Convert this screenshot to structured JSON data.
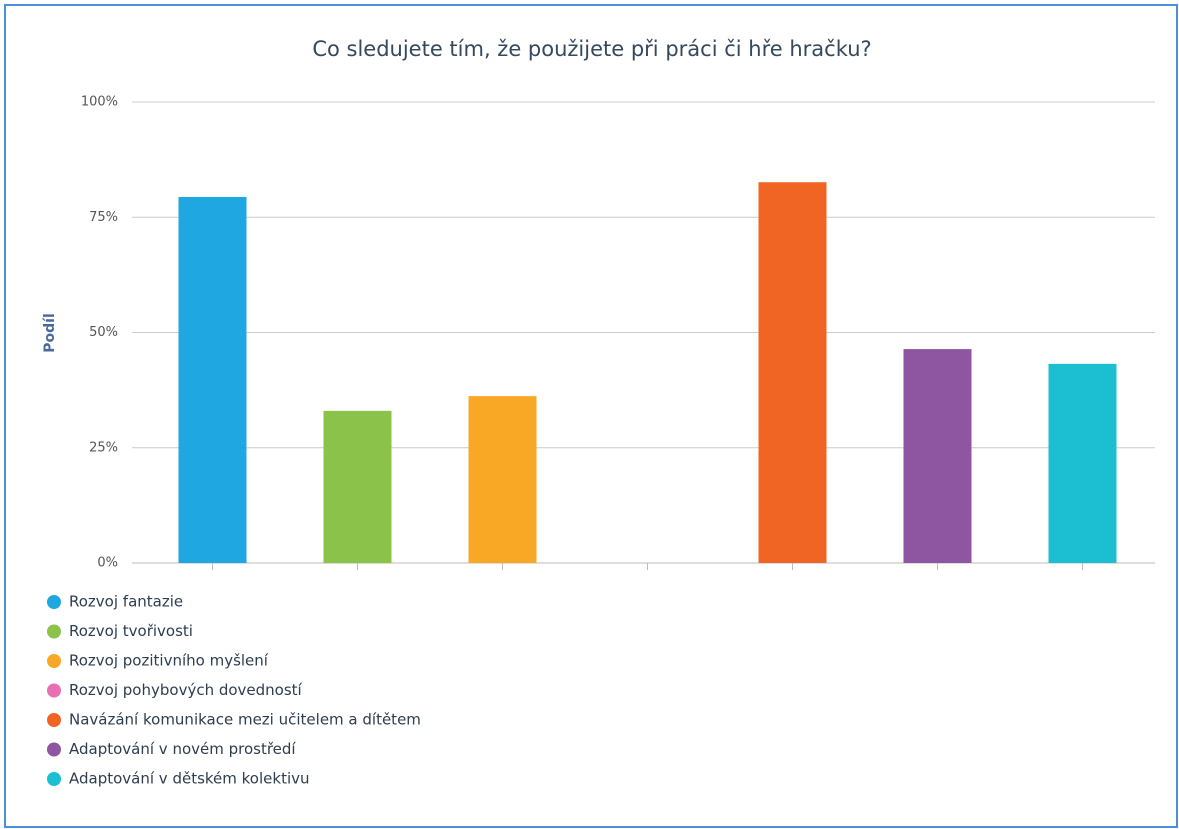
{
  "chart_data": {
    "type": "bar",
    "title": "Co sledujete tím, že použijete při práci či hře hračku?",
    "y_label": "Podíl",
    "series": [
      {
        "name": "Rozvoj fantazie",
        "color": "#1ea7e1",
        "values": [
          79.4
        ]
      },
      {
        "name": "Rozvoj tvořivosti",
        "color": "#8bc34a",
        "values": [
          33.0
        ]
      },
      {
        "name": "Rozvoj pozitivního myšlení",
        "color": "#f9a825",
        "values": [
          36.2
        ]
      },
      {
        "name": "Rozvoj pohybových dovedností",
        "color": "#e86fb3",
        "values": [
          0
        ]
      },
      {
        "name": "Navázání komunikace mezi učitelem a dítětem",
        "color": "#f06523",
        "values": [
          82.6
        ]
      },
      {
        "name": "Adaptování v novém prostředí",
        "color": "#8e55a0",
        "values": [
          46.4
        ]
      },
      {
        "name": "Adaptování v dětském kolektivu",
        "color": "#1bbfd1",
        "values": [
          43.2
        ]
      }
    ],
    "ylim": [
      0,
      100
    ],
    "yticks": [
      {
        "value": 0,
        "label": "0%"
      },
      {
        "value": 25,
        "label": "25%"
      },
      {
        "value": 50,
        "label": "50%"
      },
      {
        "value": 75,
        "label": "75%"
      },
      {
        "value": 100,
        "label": "100%"
      }
    ],
    "grid": true
  }
}
